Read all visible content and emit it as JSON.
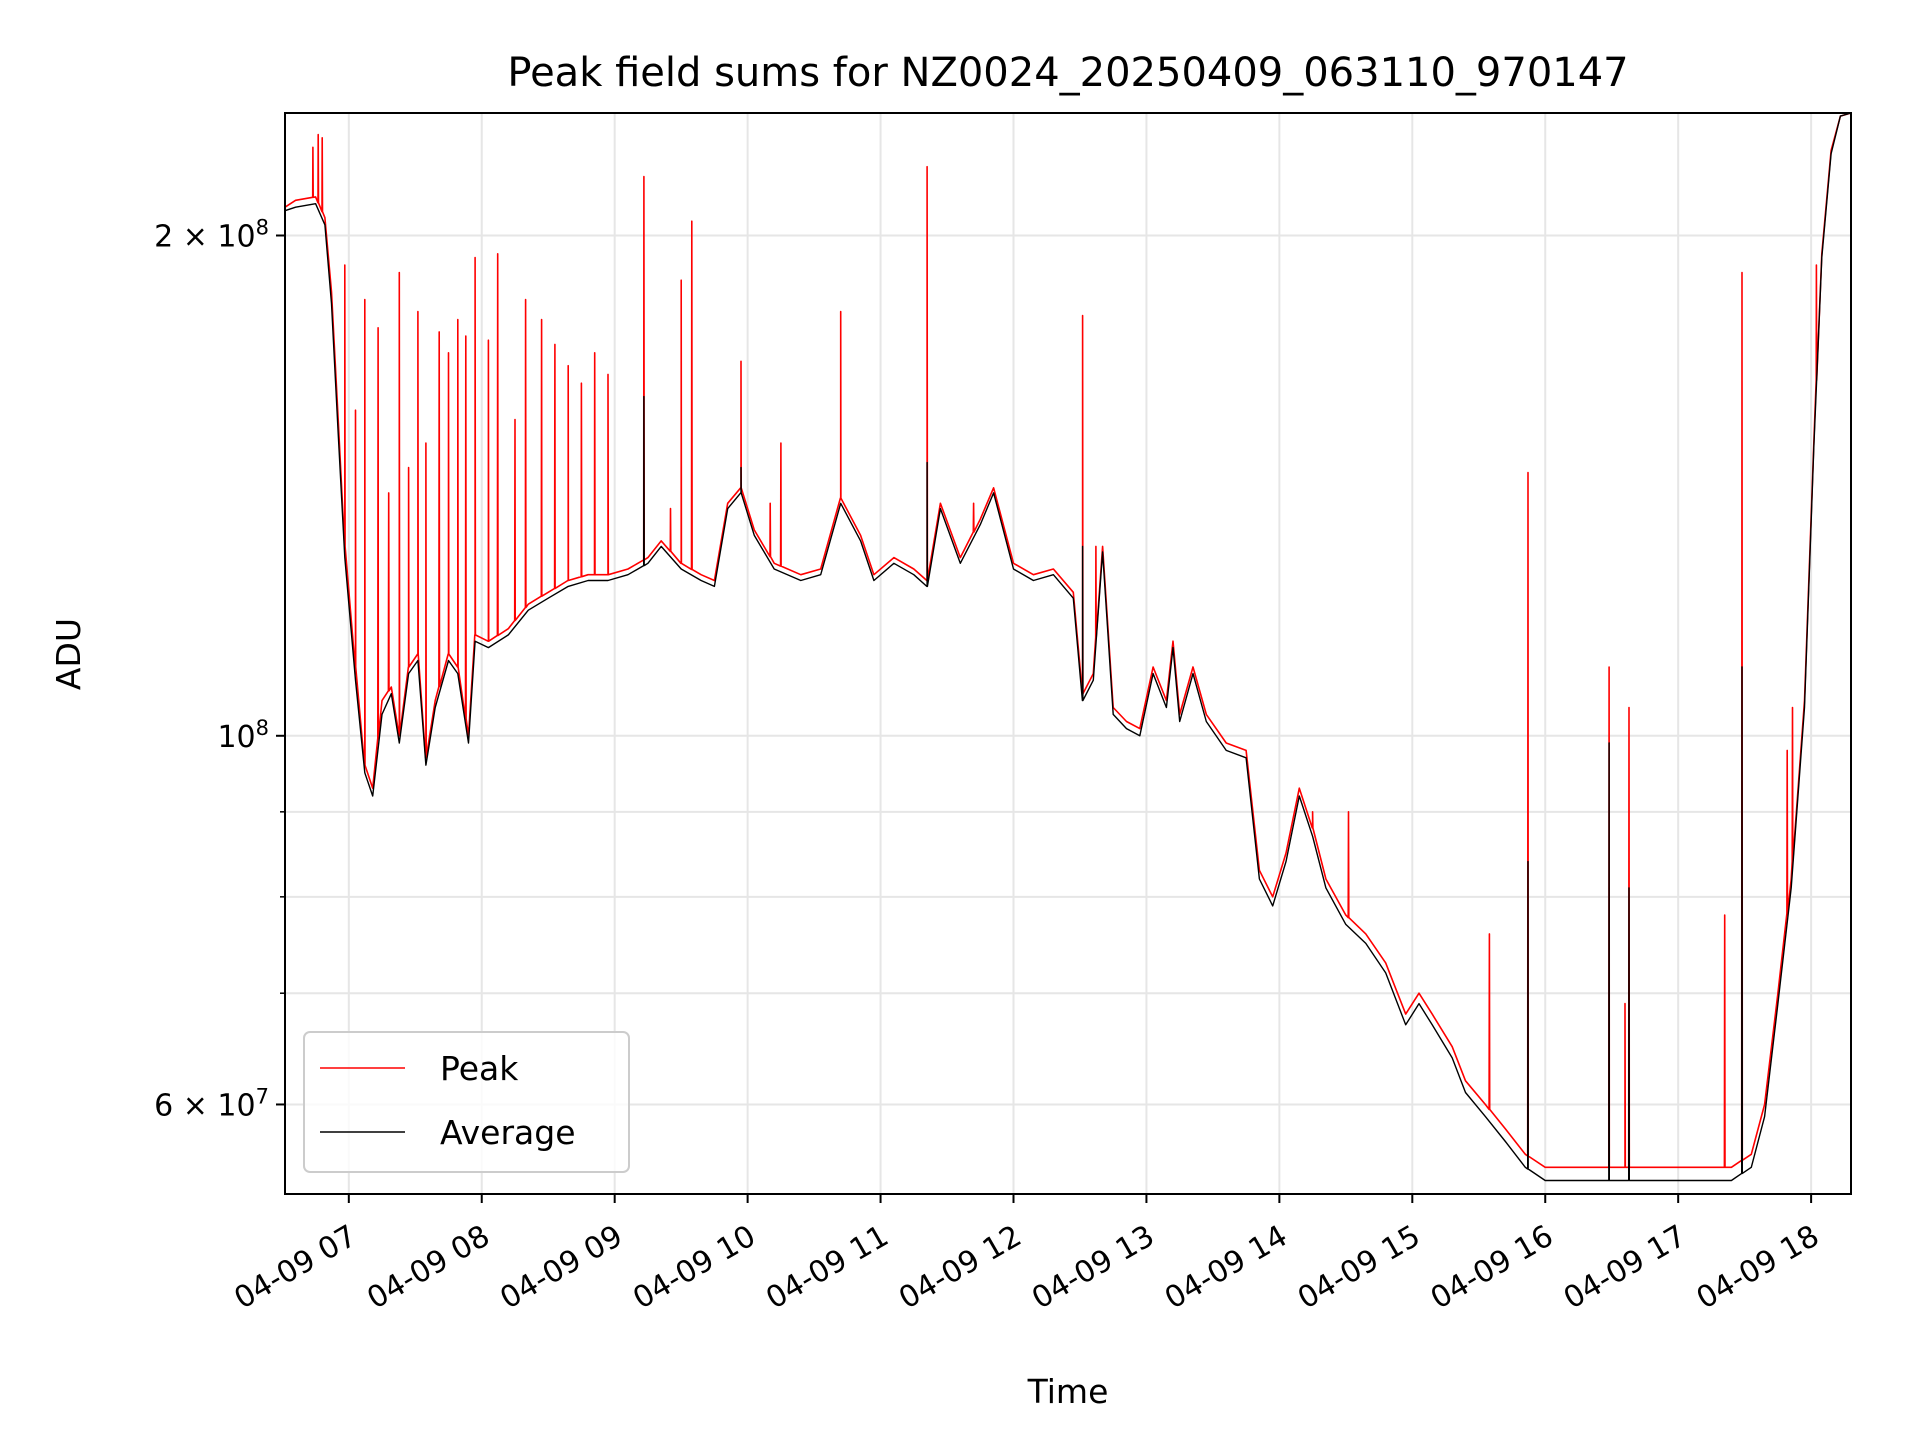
{
  "chart_data": {
    "type": "line",
    "title": "Peak field sums for NZ0024_20250409_063110_970147",
    "xlabel": "Time",
    "ylabel": "ADU",
    "yscale": "log",
    "ylim": [
      53000000,
      237000000
    ],
    "xlim_hours": [
      6.52,
      18.3
    ],
    "grid": true,
    "legend_position": "lower-left",
    "x_ticks": [
      {
        "hour": 7,
        "label": "04-09 07"
      },
      {
        "hour": 8,
        "label": "04-09 08"
      },
      {
        "hour": 9,
        "label": "04-09 09"
      },
      {
        "hour": 10,
        "label": "04-09 10"
      },
      {
        "hour": 11,
        "label": "04-09 11"
      },
      {
        "hour": 12,
        "label": "04-09 12"
      },
      {
        "hour": 13,
        "label": "04-09 13"
      },
      {
        "hour": 14,
        "label": "04-09 14"
      },
      {
        "hour": 15,
        "label": "04-09 15"
      },
      {
        "hour": 16,
        "label": "04-09 16"
      },
      {
        "hour": 17,
        "label": "04-09 17"
      },
      {
        "hour": 18,
        "label": "04-09 18"
      }
    ],
    "y_ticks": [
      {
        "value": 60000000,
        "base": "6 × 10",
        "exp": "7"
      },
      {
        "value": 100000000,
        "base": "10",
        "exp": "8"
      },
      {
        "value": 200000000,
        "base": "2 × 10",
        "exp": "8"
      }
    ],
    "y_minor_ticks": [
      70000000,
      80000000,
      90000000
    ],
    "colors": {
      "Peak": "#ff0000",
      "Average": "#000000",
      "grid": "#e6e6e6"
    },
    "series": [
      {
        "name": "Peak",
        "color": "#ff0000",
        "baseline": [
          [
            6.52,
            208000000
          ],
          [
            6.6,
            210000000
          ],
          [
            6.75,
            211000000
          ],
          [
            6.82,
            205000000
          ],
          [
            6.87,
            185000000
          ],
          [
            6.92,
            155000000
          ],
          [
            6.97,
            130000000
          ],
          [
            7.05,
            110000000
          ],
          [
            7.12,
            96000000
          ],
          [
            7.18,
            93000000
          ],
          [
            7.25,
            105000000
          ],
          [
            7.32,
            107000000
          ],
          [
            7.38,
            100000000
          ],
          [
            7.45,
            110000000
          ],
          [
            7.52,
            112000000
          ],
          [
            7.58,
            97000000
          ],
          [
            7.65,
            105000000
          ],
          [
            7.75,
            112000000
          ],
          [
            7.82,
            110000000
          ],
          [
            7.9,
            100000000
          ],
          [
            7.95,
            115000000
          ],
          [
            8.05,
            114000000
          ],
          [
            8.2,
            116000000
          ],
          [
            8.35,
            120000000
          ],
          [
            8.5,
            122000000
          ],
          [
            8.65,
            124000000
          ],
          [
            8.8,
            125000000
          ],
          [
            8.95,
            125000000
          ],
          [
            9.1,
            126000000
          ],
          [
            9.25,
            128000000
          ],
          [
            9.35,
            131000000
          ],
          [
            9.5,
            127000000
          ],
          [
            9.65,
            125000000
          ],
          [
            9.75,
            124000000
          ],
          [
            9.85,
            138000000
          ],
          [
            9.95,
            141000000
          ],
          [
            10.05,
            133000000
          ],
          [
            10.2,
            127000000
          ],
          [
            10.4,
            125000000
          ],
          [
            10.55,
            126000000
          ],
          [
            10.7,
            139000000
          ],
          [
            10.85,
            132000000
          ],
          [
            10.95,
            125000000
          ],
          [
            11.1,
            128000000
          ],
          [
            11.25,
            126000000
          ],
          [
            11.35,
            124000000
          ],
          [
            11.45,
            138000000
          ],
          [
            11.6,
            128000000
          ],
          [
            11.75,
            135000000
          ],
          [
            11.85,
            141000000
          ],
          [
            12.0,
            127000000
          ],
          [
            12.15,
            125000000
          ],
          [
            12.3,
            126000000
          ],
          [
            12.45,
            122000000
          ],
          [
            12.52,
            106000000
          ],
          [
            12.6,
            109000000
          ],
          [
            12.67,
            130000000
          ],
          [
            12.75,
            104000000
          ],
          [
            12.85,
            102000000
          ],
          [
            12.95,
            101000000
          ],
          [
            13.05,
            110000000
          ],
          [
            13.15,
            105000000
          ],
          [
            13.2,
            114000000
          ],
          [
            13.25,
            103000000
          ],
          [
            13.35,
            110000000
          ],
          [
            13.45,
            103000000
          ],
          [
            13.6,
            99000000
          ],
          [
            13.75,
            98000000
          ],
          [
            13.85,
            83000000
          ],
          [
            13.95,
            80000000
          ],
          [
            14.05,
            85000000
          ],
          [
            14.15,
            93000000
          ],
          [
            14.25,
            88000000
          ],
          [
            14.35,
            82000000
          ],
          [
            14.5,
            78000000
          ],
          [
            14.65,
            76000000
          ],
          [
            14.8,
            73000000
          ],
          [
            14.95,
            68000000
          ],
          [
            15.05,
            70000000
          ],
          [
            15.15,
            68000000
          ],
          [
            15.3,
            65000000
          ],
          [
            15.4,
            62000000
          ],
          [
            15.55,
            60000000
          ],
          [
            15.7,
            58000000
          ],
          [
            15.85,
            56000000
          ],
          [
            16.0,
            55000000
          ],
          [
            16.2,
            55000000
          ],
          [
            16.4,
            55000000
          ],
          [
            16.6,
            55000000
          ],
          [
            16.8,
            55000000
          ],
          [
            17.0,
            55000000
          ],
          [
            17.2,
            55000000
          ],
          [
            17.4,
            55000000
          ],
          [
            17.55,
            56000000
          ],
          [
            17.65,
            60000000
          ],
          [
            17.75,
            70000000
          ],
          [
            17.85,
            82000000
          ],
          [
            17.95,
            105000000
          ],
          [
            18.02,
            150000000
          ],
          [
            18.08,
            195000000
          ],
          [
            18.15,
            225000000
          ],
          [
            18.22,
            236000000
          ],
          [
            18.3,
            237000000
          ]
        ],
        "spikes": [
          [
            6.73,
            226000000
          ],
          [
            6.77,
            230000000
          ],
          [
            6.8,
            229000000
          ],
          [
            6.97,
            192000000
          ],
          [
            7.05,
            157000000
          ],
          [
            7.12,
            183000000
          ],
          [
            7.22,
            176000000
          ],
          [
            7.3,
            140000000
          ],
          [
            7.38,
            190000000
          ],
          [
            7.45,
            145000000
          ],
          [
            7.52,
            180000000
          ],
          [
            7.58,
            150000000
          ],
          [
            7.68,
            175000000
          ],
          [
            7.75,
            170000000
          ],
          [
            7.82,
            178000000
          ],
          [
            7.88,
            174000000
          ],
          [
            7.95,
            194000000
          ],
          [
            8.05,
            173000000
          ],
          [
            8.12,
            195000000
          ],
          [
            8.25,
            155000000
          ],
          [
            8.33,
            183000000
          ],
          [
            8.45,
            178000000
          ],
          [
            8.55,
            172000000
          ],
          [
            8.65,
            167000000
          ],
          [
            8.75,
            163000000
          ],
          [
            8.85,
            170000000
          ],
          [
            8.95,
            165000000
          ],
          [
            9.22,
            217000000
          ],
          [
            9.42,
            137000000
          ],
          [
            9.5,
            188000000
          ],
          [
            9.58,
            204000000
          ],
          [
            9.95,
            168000000
          ],
          [
            10.17,
            138000000
          ],
          [
            10.25,
            150000000
          ],
          [
            10.7,
            180000000
          ],
          [
            11.35,
            220000000
          ],
          [
            11.7,
            138000000
          ],
          [
            12.52,
            179000000
          ],
          [
            12.62,
            130000000
          ],
          [
            14.25,
            90000000
          ],
          [
            14.52,
            90000000
          ],
          [
            15.58,
            76000000
          ],
          [
            15.87,
            144000000
          ],
          [
            16.48,
            110000000
          ],
          [
            16.6,
            69000000
          ],
          [
            16.63,
            104000000
          ],
          [
            17.35,
            78000000
          ],
          [
            17.48,
            190000000
          ],
          [
            17.82,
            98000000
          ],
          [
            17.86,
            104000000
          ],
          [
            18.04,
            192000000
          ]
        ]
      },
      {
        "name": "Average",
        "color": "#000000",
        "baseline": [
          [
            6.52,
            207000000
          ],
          [
            6.6,
            208000000
          ],
          [
            6.75,
            209000000
          ],
          [
            6.82,
            203000000
          ],
          [
            6.87,
            182000000
          ],
          [
            6.92,
            152000000
          ],
          [
            6.97,
            128000000
          ],
          [
            7.05,
            108000000
          ],
          [
            7.12,
            95000000
          ],
          [
            7.18,
            92000000
          ],
          [
            7.25,
            103000000
          ],
          [
            7.32,
            106000000
          ],
          [
            7.38,
            99000000
          ],
          [
            7.45,
            109000000
          ],
          [
            7.52,
            111000000
          ],
          [
            7.58,
            96000000
          ],
          [
            7.65,
            104000000
          ],
          [
            7.75,
            111000000
          ],
          [
            7.82,
            109000000
          ],
          [
            7.9,
            99000000
          ],
          [
            7.95,
            114000000
          ],
          [
            8.05,
            113000000
          ],
          [
            8.2,
            115000000
          ],
          [
            8.35,
            119000000
          ],
          [
            8.5,
            121000000
          ],
          [
            8.65,
            123000000
          ],
          [
            8.8,
            124000000
          ],
          [
            8.95,
            124000000
          ],
          [
            9.1,
            125000000
          ],
          [
            9.25,
            127000000
          ],
          [
            9.35,
            130000000
          ],
          [
            9.5,
            126000000
          ],
          [
            9.65,
            124000000
          ],
          [
            9.75,
            123000000
          ],
          [
            9.85,
            137000000
          ],
          [
            9.95,
            140000000
          ],
          [
            10.05,
            132000000
          ],
          [
            10.2,
            126000000
          ],
          [
            10.4,
            124000000
          ],
          [
            10.55,
            125000000
          ],
          [
            10.7,
            138000000
          ],
          [
            10.85,
            131000000
          ],
          [
            10.95,
            124000000
          ],
          [
            11.1,
            127000000
          ],
          [
            11.25,
            125000000
          ],
          [
            11.35,
            123000000
          ],
          [
            11.45,
            137000000
          ],
          [
            11.6,
            127000000
          ],
          [
            11.75,
            134000000
          ],
          [
            11.85,
            140000000
          ],
          [
            12.0,
            126000000
          ],
          [
            12.15,
            124000000
          ],
          [
            12.3,
            125000000
          ],
          [
            12.45,
            121000000
          ],
          [
            12.52,
            105000000
          ],
          [
            12.6,
            108000000
          ],
          [
            12.67,
            129000000
          ],
          [
            12.75,
            103000000
          ],
          [
            12.85,
            101000000
          ],
          [
            12.95,
            100000000
          ],
          [
            13.05,
            109000000
          ],
          [
            13.15,
            104000000
          ],
          [
            13.2,
            113000000
          ],
          [
            13.25,
            102000000
          ],
          [
            13.35,
            109000000
          ],
          [
            13.45,
            102000000
          ],
          [
            13.6,
            98000000
          ],
          [
            13.75,
            97000000
          ],
          [
            13.85,
            82000000
          ],
          [
            13.95,
            79000000
          ],
          [
            14.05,
            84000000
          ],
          [
            14.15,
            92000000
          ],
          [
            14.25,
            87000000
          ],
          [
            14.35,
            81000000
          ],
          [
            14.5,
            77000000
          ],
          [
            14.65,
            75000000
          ],
          [
            14.8,
            72000000
          ],
          [
            14.95,
            67000000
          ],
          [
            15.05,
            69000000
          ],
          [
            15.15,
            67000000
          ],
          [
            15.3,
            64000000
          ],
          [
            15.4,
            61000000
          ],
          [
            15.55,
            59000000
          ],
          [
            15.7,
            57000000
          ],
          [
            15.85,
            55000000
          ],
          [
            16.0,
            54000000
          ],
          [
            16.2,
            54000000
          ],
          [
            16.4,
            54000000
          ],
          [
            16.6,
            54000000
          ],
          [
            16.8,
            54000000
          ],
          [
            17.0,
            54000000
          ],
          [
            17.2,
            54000000
          ],
          [
            17.4,
            54000000
          ],
          [
            17.55,
            55000000
          ],
          [
            17.65,
            59000000
          ],
          [
            17.75,
            69000000
          ],
          [
            17.85,
            81000000
          ],
          [
            17.95,
            104000000
          ],
          [
            18.02,
            149000000
          ],
          [
            18.08,
            194000000
          ],
          [
            18.15,
            224000000
          ],
          [
            18.22,
            236000000
          ],
          [
            18.3,
            237000000
          ]
        ],
        "spikes": [
          [
            9.22,
            160000000
          ],
          [
            9.95,
            145000000
          ],
          [
            11.35,
            146000000
          ],
          [
            12.52,
            130000000
          ],
          [
            15.87,
            84000000
          ],
          [
            16.48,
            99000000
          ],
          [
            16.63,
            81000000
          ],
          [
            17.48,
            110000000
          ]
        ]
      }
    ]
  }
}
